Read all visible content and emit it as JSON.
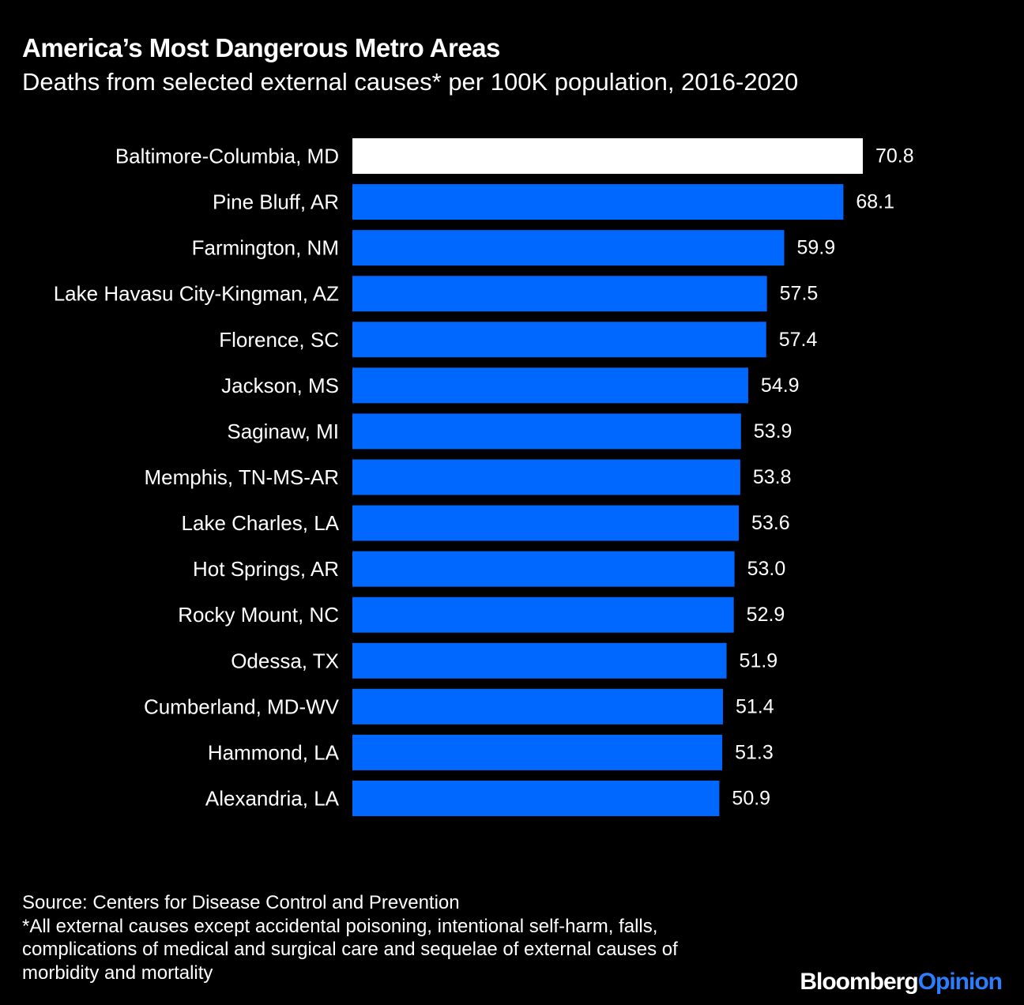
{
  "header": {
    "title": "America’s Most Dangerous Metro Areas",
    "subtitle": "Deaths from selected external causes* per 100K population, 2016-2020"
  },
  "chart_data": {
    "type": "bar",
    "orientation": "horizontal",
    "categories": [
      "Baltimore-Columbia, MD",
      "Pine Bluff, AR",
      "Farmington, NM",
      "Lake Havasu City-Kingman, AZ",
      "Florence, SC",
      "Jackson, MS",
      "Saginaw, MI",
      "Memphis, TN-MS-AR",
      "Lake Charles, LA",
      "Hot Springs, AR",
      "Rocky Mount, NC",
      "Odessa, TX",
      "Cumberland, MD-WV",
      "Hammond, LA",
      "Alexandria, LA"
    ],
    "values": [
      70.8,
      68.1,
      59.9,
      57.5,
      57.4,
      54.9,
      53.9,
      53.8,
      53.6,
      53.0,
      52.9,
      51.9,
      51.4,
      51.3,
      50.9
    ],
    "value_labels": [
      "70.8",
      "68.1",
      "59.9",
      "57.5",
      "57.4",
      "54.9",
      "53.9",
      "53.8",
      "53.6",
      "53.0",
      "52.9",
      "51.9",
      "51.4",
      "51.3",
      "50.9"
    ],
    "highlight_index": 0,
    "xlim": [
      0,
      70.8
    ],
    "grid": false,
    "legend": "none",
    "colors": {
      "bar": "#0068ff",
      "highlight": "#ffffff",
      "background": "#000000",
      "text": "#ffffff"
    }
  },
  "footer": {
    "source": "Source: Centers for Disease Control and Prevention",
    "note_lines": [
      "*All external causes except accidental poisoning, intentional self-harm, falls,",
      "complications of medical and surgical care and sequelae of external causes of",
      "morbidity and mortality"
    ],
    "brand_part1": "Bloomberg",
    "brand_part2": "Opinion",
    "brand_part2_color": "#2b7fff"
  }
}
